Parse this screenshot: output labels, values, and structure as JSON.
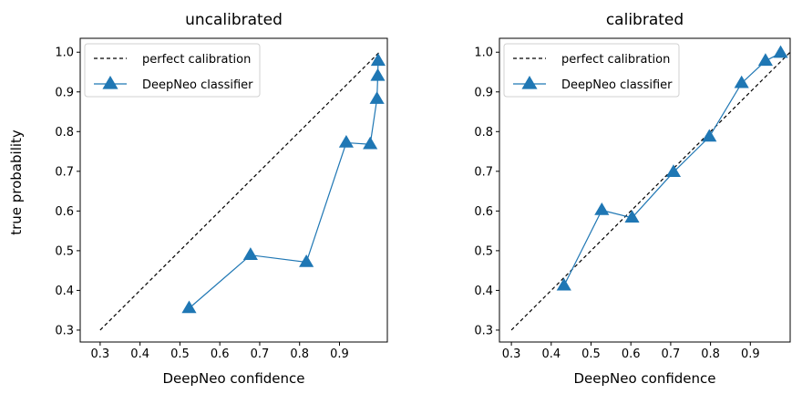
{
  "figure": {
    "shared_ylabel": "true probability"
  },
  "chart_data": [
    {
      "type": "line",
      "title": "uncalibrated",
      "xlabel": "DeepNeo confidence",
      "ylabel": "true probability",
      "xlim": [
        0.25,
        1.02
      ],
      "ylim": [
        0.27,
        1.035
      ],
      "xticks": [
        0.3,
        0.4,
        0.5,
        0.6,
        0.7,
        0.8,
        0.9
      ],
      "xtick_labels": [
        "0.3",
        "0.4",
        "0.5",
        "0.6",
        "0.7",
        "0.8",
        "0.9"
      ],
      "yticks": [
        0.3,
        0.4,
        0.5,
        0.6,
        0.7,
        0.8,
        0.9,
        1.0
      ],
      "ytick_labels": [
        "0.3",
        "0.4",
        "0.5",
        "0.6",
        "0.7",
        "0.8",
        "0.9",
        "1.0"
      ],
      "legend_position": "top-left",
      "grid": false,
      "series": [
        {
          "name": "perfect calibration",
          "style": "dashed",
          "color": "#000000",
          "x": [
            0.3,
            1.0
          ],
          "y": [
            0.3,
            1.0
          ]
        },
        {
          "name": "DeepNeo classifier",
          "style": "solid-triangle",
          "color": "#1f77b4",
          "x": [
            0.523,
            0.677,
            0.817,
            0.917,
            0.977,
            0.994,
            0.996,
            0.997
          ],
          "y": [
            0.355,
            0.489,
            0.471,
            0.772,
            0.768,
            0.882,
            0.94,
            0.978
          ]
        }
      ]
    },
    {
      "type": "line",
      "title": "calibrated",
      "xlabel": "DeepNeo confidence",
      "ylabel": "",
      "xlim": [
        0.27,
        1.0
      ],
      "ylim": [
        0.27,
        1.035
      ],
      "xticks": [
        0.3,
        0.4,
        0.5,
        0.6,
        0.7,
        0.8,
        0.9
      ],
      "xtick_labels": [
        "0.3",
        "0.4",
        "0.5",
        "0.6",
        "0.7",
        "0.8",
        "0.9"
      ],
      "yticks": [
        0.3,
        0.4,
        0.5,
        0.6,
        0.7,
        0.8,
        0.9,
        1.0
      ],
      "ytick_labels": [
        "0.3",
        "0.4",
        "0.5",
        "0.6",
        "0.7",
        "0.8",
        "0.9",
        "1.0"
      ],
      "legend_position": "top-left",
      "grid": false,
      "series": [
        {
          "name": "perfect calibration",
          "style": "dashed",
          "color": "#000000",
          "x": [
            0.3,
            1.0
          ],
          "y": [
            0.3,
            1.0
          ]
        },
        {
          "name": "DeepNeo classifier",
          "style": "solid-triangle",
          "color": "#1f77b4",
          "x": [
            0.432,
            0.527,
            0.603,
            0.707,
            0.797,
            0.878,
            0.938,
            0.976
          ],
          "y": [
            0.412,
            0.602,
            0.583,
            0.698,
            0.787,
            0.922,
            0.978,
            0.998
          ]
        }
      ]
    }
  ]
}
